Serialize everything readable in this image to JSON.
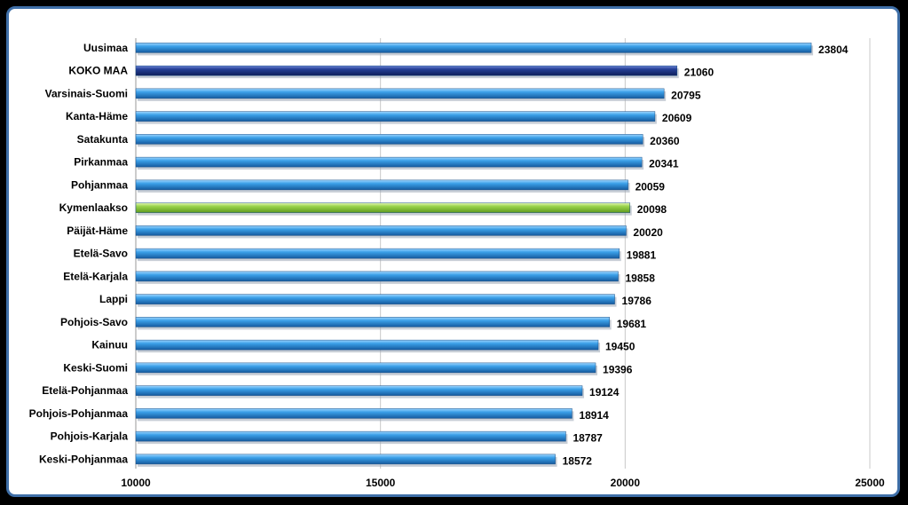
{
  "chart_data": {
    "type": "bar",
    "orientation": "horizontal",
    "categories": [
      "Uusimaa",
      "KOKO MAA",
      "Varsinais-Suomi",
      "Kanta-Häme",
      "Satakunta",
      "Pirkanmaa",
      "Pohjanmaa",
      "Kymenlaakso",
      "Päijät-Häme",
      "Etelä-Savo",
      "Etelä-Karjala",
      "Lappi",
      "Pohjois-Savo",
      "Kainuu",
      "Keski-Suomi",
      "Etelä-Pohjanmaa",
      "Pohjois-Pohjanmaa",
      "Pohjois-Karjala",
      "Keski-Pohjanmaa"
    ],
    "values": [
      23804,
      21060,
      20795,
      20609,
      20360,
      20341,
      20059,
      20098,
      20020,
      19881,
      19858,
      19786,
      19681,
      19450,
      19396,
      19124,
      18914,
      18787,
      18572
    ],
    "value_labels": [
      "23804",
      "21060",
      "20795",
      "20609",
      "20360",
      "20341",
      "20059",
      "20098",
      "20020",
      "19881",
      "19858",
      "19786",
      "19681",
      "19450",
      "19396",
      "19124",
      "18914",
      "18787",
      "18572"
    ],
    "xlim": [
      10000,
      25000
    ],
    "xticks": [
      10000,
      15000,
      20000,
      25000
    ],
    "xtick_labels": [
      "10000",
      "15000",
      "20000",
      "25000"
    ],
    "grid": "vertical",
    "legend": "none",
    "colors": {
      "default": "#2f8fd6",
      "KOKO MAA": "#1f3a8a",
      "Kymenlaakso": "#92d050",
      "grid": "#c8c8c8",
      "frame": "#3f6fa8"
    }
  }
}
